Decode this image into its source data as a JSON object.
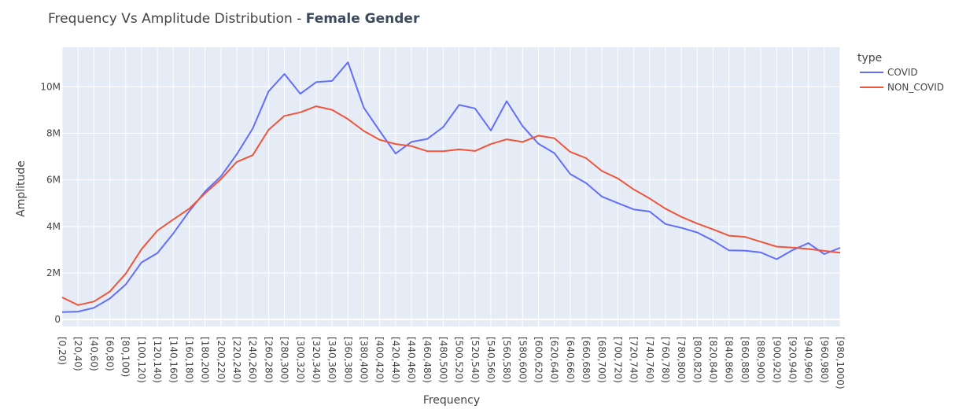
{
  "chart_data": {
    "type": "line",
    "title": "Frequency Vs Amplitude Distribution - ",
    "title_bold": "Female Gender",
    "xlabel": "Frequency",
    "ylabel": "Amplitude",
    "ylim": [
      -300000,
      11700000
    ],
    "yticks": [
      0,
      2000000,
      4000000,
      6000000,
      8000000,
      10000000
    ],
    "ytick_labels": [
      "0",
      "2M",
      "4M",
      "6M",
      "8M",
      "10M"
    ],
    "grid": true,
    "plot_background": "#e5ecf6",
    "legend": {
      "title": "type",
      "placement": "top-right"
    },
    "categories": [
      "[0,20)",
      "[20,40)",
      "[40,60)",
      "[60,80)",
      "[80,100)",
      "[100,120)",
      "[120,140)",
      "[140,160)",
      "[160,180)",
      "[180,200)",
      "[200,220)",
      "[220,240)",
      "[240,260)",
      "[260,280)",
      "[280,300)",
      "[300,320)",
      "[320,340)",
      "[340,360)",
      "[360,380)",
      "[380,400)",
      "[400,420)",
      "[420,440)",
      "[440,460)",
      "[460,480)",
      "[480,500)",
      "[500,520)",
      "[520,540)",
      "[540,560)",
      "[560,580)",
      "[580,600)",
      "[600,620)",
      "[620,640)",
      "[640,660)",
      "[660,680)",
      "[680,700)",
      "[700,720)",
      "[720,740)",
      "[740,760)",
      "[760,780)",
      "[780,800)",
      "[800,820)",
      "[820,840)",
      "[840,860)",
      "[860,880)",
      "[880,900)",
      "[900,920)",
      "[920,940)",
      "[940,960)",
      "[960,980)",
      "[980,1000)"
    ],
    "series": [
      {
        "name": "COVID",
        "color": "#636efa",
        "values": [
          320000,
          340000,
          500000,
          900000,
          1500000,
          2450000,
          2850000,
          3700000,
          4650000,
          5500000,
          6150000,
          7100000,
          8200000,
          9800000,
          10550000,
          9700000,
          10200000,
          10250000,
          11050000,
          9100000,
          8100000,
          7130000,
          7630000,
          7760000,
          8270000,
          9220000,
          9070000,
          8120000,
          9380000,
          8310000,
          7550000,
          7150000,
          6250000,
          5860000,
          5280000,
          5000000,
          4730000,
          4640000,
          4100000,
          3940000,
          3740000,
          3390000,
          2970000,
          2960000,
          2880000,
          2590000,
          2980000,
          3280000,
          2810000,
          3080000
        ]
      },
      {
        "name": "NON_COVID",
        "color": "#ef553b",
        "values": [
          950000,
          620000,
          770000,
          1200000,
          1960000,
          3020000,
          3820000,
          4300000,
          4760000,
          5420000,
          6030000,
          6770000,
          7060000,
          8150000,
          8750000,
          8900000,
          9160000,
          9010000,
          8610000,
          8100000,
          7720000,
          7540000,
          7450000,
          7230000,
          7230000,
          7310000,
          7240000,
          7540000,
          7740000,
          7630000,
          7900000,
          7790000,
          7200000,
          6930000,
          6380000,
          6060000,
          5590000,
          5200000,
          4760000,
          4410000,
          4120000,
          3870000,
          3600000,
          3550000,
          3340000,
          3130000,
          3090000,
          3030000,
          2950000,
          2870000
        ]
      }
    ]
  }
}
